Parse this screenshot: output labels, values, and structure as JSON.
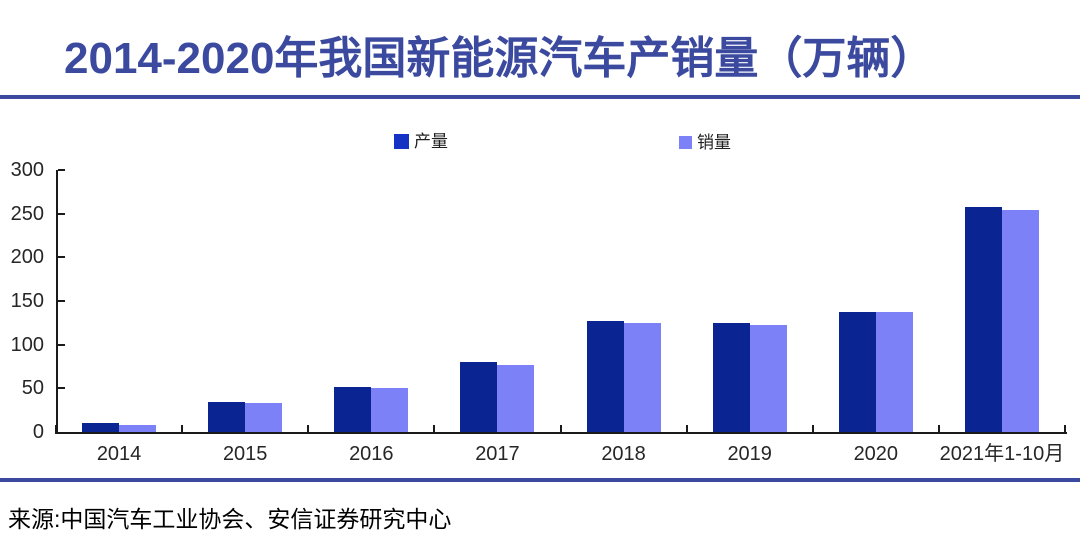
{
  "colors": {
    "title_blue": "#3B4A9F",
    "divider_blue": "#3B4A9F",
    "production_blue": "#0A2592",
    "legend_production": "#1632C4",
    "sales_periwinkle": "#7D81F7",
    "axis_black": "#1a1a1a",
    "source_black": "#000000"
  },
  "chart_data": {
    "type": "bar",
    "title": "2014-2020年我国新能源汽车产销量（万辆）",
    "categories": [
      "2014",
      "2015",
      "2016",
      "2017",
      "2018",
      "2019",
      "2020",
      "2021年1-10月"
    ],
    "series": [
      {
        "name": "产量",
        "color": "#0A2592",
        "values": [
          10,
          34,
          52,
          80,
          127,
          125,
          137,
          258
        ]
      },
      {
        "name": "销量",
        "color": "#7D81F7",
        "values": [
          8,
          33,
          50,
          77,
          125,
          122,
          137,
          254
        ]
      }
    ],
    "xlabel": "",
    "ylabel": "",
    "ylim": [
      0,
      300
    ],
    "ytick_step": 50,
    "grid": false,
    "legend_position": "top"
  },
  "source": {
    "text": "来源:中国汽车工业协会、安信证券研究中心"
  }
}
